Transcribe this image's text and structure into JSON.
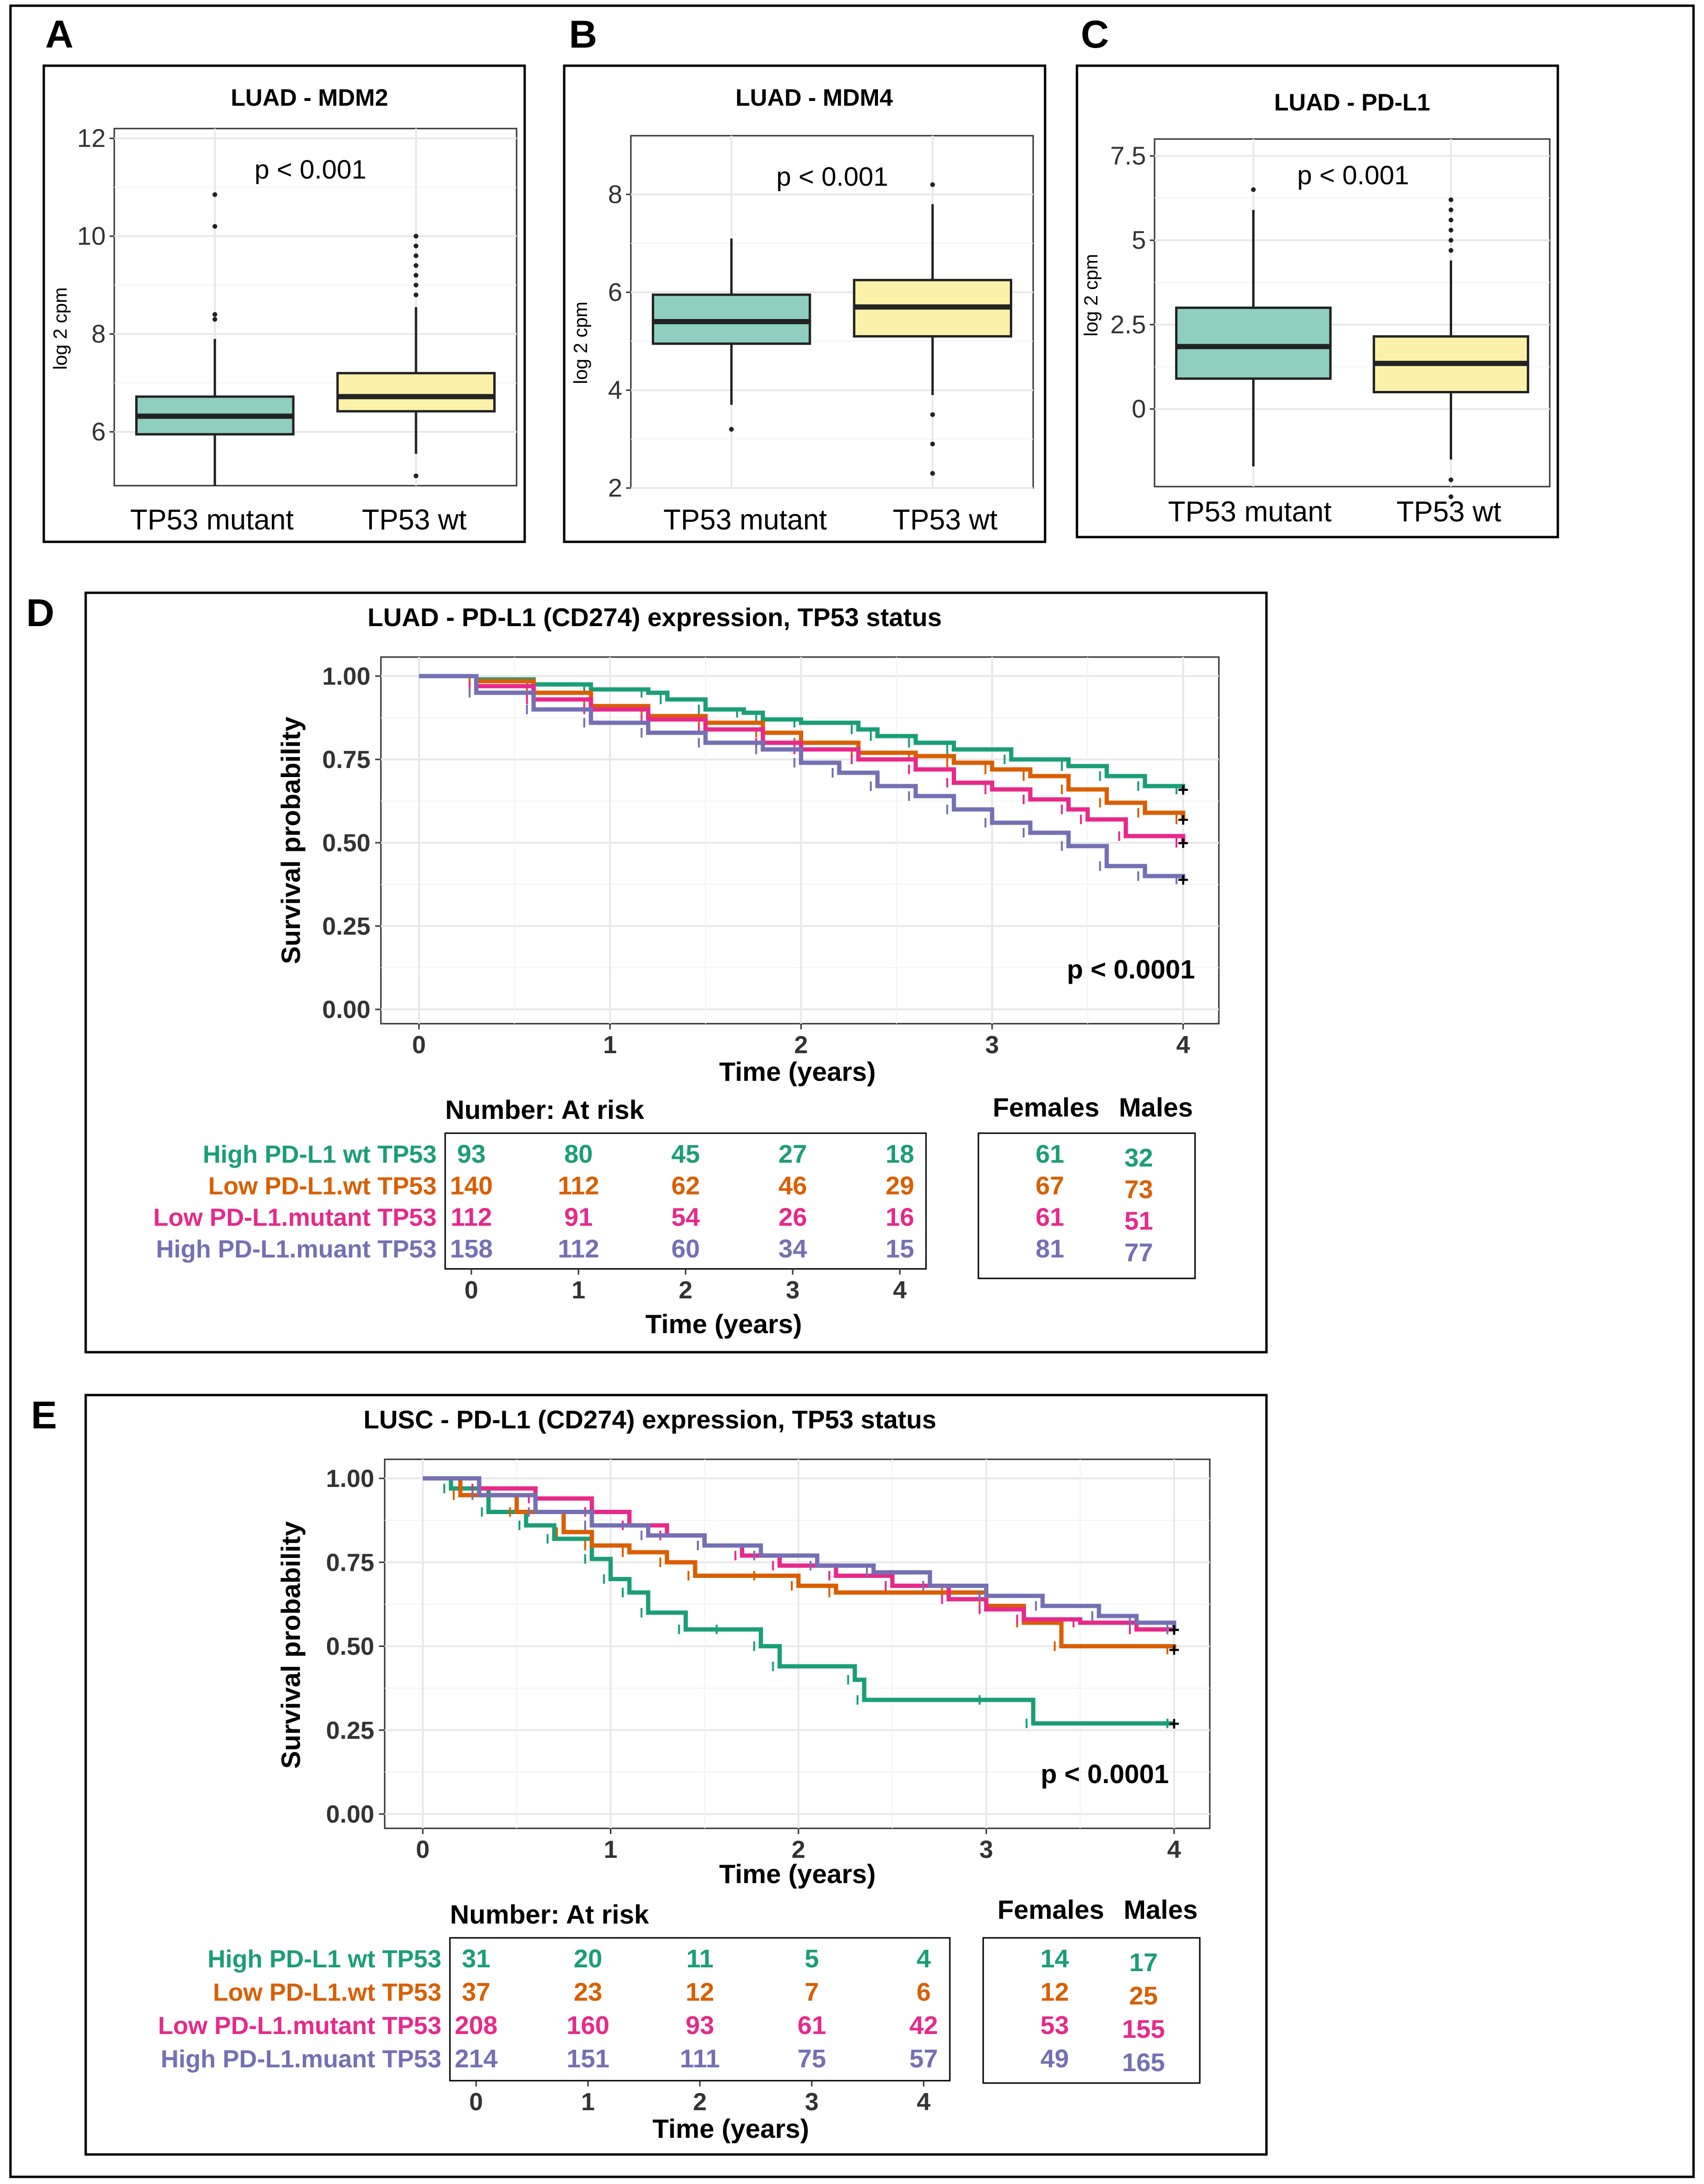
{
  "panels": {
    "A": "A",
    "B": "B",
    "C": "C",
    "D": "D",
    "E": "E"
  },
  "colors": {
    "mutant_fill": "#8ecfc0",
    "wt_fill": "#fbf1a9",
    "high_wt": "#1b9e77",
    "low_wt": "#d95f02",
    "low_mut": "#e7298a",
    "high_mut": "#7570b3"
  },
  "box_plots": [
    {
      "id": "A",
      "title": "LUAD - MDM2",
      "ylabel": "log 2 cpm",
      "p_value": "p < 0.001",
      "ylim": [
        4.9,
        12.2
      ],
      "yticks": [
        6,
        8,
        10,
        12
      ],
      "ytick_labels": [
        "6",
        "8",
        "10",
        "12"
      ],
      "groups": [
        {
          "label": "TP53 mutant",
          "q1": 5.95,
          "median": 6.32,
          "q3": 6.72,
          "wlo": 4.9,
          "whi": 7.9,
          "outliers": [
            8.3,
            8.4,
            10.2,
            10.85
          ]
        },
        {
          "label": "TP53 wt",
          "q1": 6.42,
          "median": 6.72,
          "q3": 7.2,
          "wlo": 5.55,
          "whi": 8.55,
          "outliers": [
            5.1,
            8.8,
            9.0,
            9.2,
            9.4,
            9.6,
            9.8,
            10.0
          ]
        }
      ]
    },
    {
      "id": "B",
      "title": "LUAD - MDM4",
      "ylabel": "log 2 cpm",
      "p_value": "p < 0.001",
      "ylim": [
        2.0,
        9.2
      ],
      "yticks": [
        2,
        4,
        6,
        8
      ],
      "ytick_labels": [
        "2",
        "4",
        "6",
        "8"
      ],
      "groups": [
        {
          "label": "TP53 mutant",
          "q1": 4.95,
          "median": 5.4,
          "q3": 5.95,
          "wlo": 3.7,
          "whi": 7.1,
          "outliers": [
            3.2
          ]
        },
        {
          "label": "TP53 wt",
          "q1": 5.1,
          "median": 5.7,
          "q3": 6.25,
          "wlo": 3.9,
          "whi": 7.8,
          "outliers": [
            2.3,
            2.9,
            3.5,
            8.2
          ]
        }
      ]
    },
    {
      "id": "C",
      "title": "LUAD - PD-L1",
      "ylabel": "log 2 cpm",
      "p_value": "p < 0.001",
      "ylim": [
        -2.3,
        8.0
      ],
      "yticks": [
        0,
        2.5,
        5,
        7.5
      ],
      "ytick_labels": [
        "0",
        "2.5",
        "5",
        "7.5"
      ],
      "groups": [
        {
          "label": "TP53 mutant",
          "q1": 0.9,
          "median": 1.85,
          "q3": 3.0,
          "wlo": -1.7,
          "whi": 5.9,
          "outliers": [
            6.5
          ]
        },
        {
          "label": "TP53 wt",
          "q1": 0.5,
          "median": 1.35,
          "q3": 2.15,
          "wlo": -1.5,
          "whi": 4.4,
          "outliers": [
            -2.1,
            -2.6,
            4.7,
            5.0,
            5.3,
            5.6,
            5.9,
            6.2
          ]
        }
      ]
    }
  ],
  "chart_data": [
    {
      "type": "line",
      "id": "D",
      "title": "LUAD - PD-L1 (CD274) expression, TP53 status",
      "xlabel": "Time (years)",
      "ylabel": "Survival probability",
      "p_value": "p < 0.0001",
      "xlim": [
        0,
        4
      ],
      "ylim": [
        0,
        1
      ],
      "xticks": [
        "0",
        "1",
        "2",
        "3",
        "4"
      ],
      "yticks": [
        "0.00",
        "0.25",
        "0.50",
        "0.75",
        "1.00"
      ],
      "series": [
        {
          "name": "High PD-L1 wt TP53",
          "color_key": "high_wt",
          "points": [
            [
              0,
              1.0
            ],
            [
              0.3,
              0.99
            ],
            [
              0.6,
              0.975
            ],
            [
              0.9,
              0.96
            ],
            [
              1.2,
              0.95
            ],
            [
              1.3,
              0.93
            ],
            [
              1.5,
              0.9
            ],
            [
              1.7,
              0.89
            ],
            [
              1.8,
              0.87
            ],
            [
              2.0,
              0.86
            ],
            [
              2.3,
              0.84
            ],
            [
              2.4,
              0.82
            ],
            [
              2.6,
              0.8
            ],
            [
              2.8,
              0.78
            ],
            [
              3.1,
              0.75
            ],
            [
              3.4,
              0.73
            ],
            [
              3.6,
              0.7
            ],
            [
              3.8,
              0.67
            ],
            [
              4.0,
              0.66
            ]
          ]
        },
        {
          "name": "Low PD-L1.wt TP53",
          "color_key": "low_wt",
          "points": [
            [
              0,
              1.0
            ],
            [
              0.3,
              0.985
            ],
            [
              0.6,
              0.95
            ],
            [
              0.9,
              0.91
            ],
            [
              1.2,
              0.88
            ],
            [
              1.5,
              0.86
            ],
            [
              1.8,
              0.83
            ],
            [
              2.0,
              0.8
            ],
            [
              2.3,
              0.77
            ],
            [
              2.6,
              0.76
            ],
            [
              2.8,
              0.74
            ],
            [
              3.0,
              0.72
            ],
            [
              3.2,
              0.7
            ],
            [
              3.4,
              0.66
            ],
            [
              3.6,
              0.62
            ],
            [
              3.8,
              0.59
            ],
            [
              4.0,
              0.57
            ]
          ]
        },
        {
          "name": "Low PD-L1.mutant TP53",
          "color_key": "low_mut",
          "points": [
            [
              0,
              1.0
            ],
            [
              0.3,
              0.97
            ],
            [
              0.6,
              0.93
            ],
            [
              0.9,
              0.9
            ],
            [
              1.2,
              0.87
            ],
            [
              1.5,
              0.84
            ],
            [
              1.8,
              0.8
            ],
            [
              2.0,
              0.78
            ],
            [
              2.3,
              0.75
            ],
            [
              2.6,
              0.72
            ],
            [
              2.8,
              0.68
            ],
            [
              3.0,
              0.66
            ],
            [
              3.2,
              0.63
            ],
            [
              3.4,
              0.6
            ],
            [
              3.5,
              0.57
            ],
            [
              3.7,
              0.52
            ],
            [
              4.0,
              0.5
            ]
          ]
        },
        {
          "name": "High PD-L1.muant TP53",
          "color_key": "high_mut",
          "points": [
            [
              0,
              1.0
            ],
            [
              0.3,
              0.95
            ],
            [
              0.6,
              0.9
            ],
            [
              0.9,
              0.86
            ],
            [
              1.2,
              0.83
            ],
            [
              1.5,
              0.8
            ],
            [
              1.8,
              0.78
            ],
            [
              2.0,
              0.74
            ],
            [
              2.2,
              0.71
            ],
            [
              2.4,
              0.67
            ],
            [
              2.6,
              0.64
            ],
            [
              2.8,
              0.6
            ],
            [
              3.0,
              0.56
            ],
            [
              3.2,
              0.53
            ],
            [
              3.4,
              0.49
            ],
            [
              3.6,
              0.43
            ],
            [
              3.8,
              0.4
            ],
            [
              4.0,
              0.39
            ]
          ]
        }
      ],
      "risk_table": {
        "header": "Number: At risk",
        "xlabel": "Time (years)",
        "ticks": [
          "0",
          "1",
          "2",
          "3",
          "4"
        ],
        "rows": [
          {
            "label": "High PD-L1 wt TP53",
            "color_key": "high_wt",
            "values": [
              "93",
              "80",
              "45",
              "27",
              "18"
            ],
            "females": "61",
            "males": "32"
          },
          {
            "label": "Low PD-L1.wt TP53",
            "color_key": "low_wt",
            "values": [
              "140",
              "112",
              "62",
              "46",
              "29"
            ],
            "females": "67",
            "males": "73"
          },
          {
            "label": "Low PD-L1.mutant TP53",
            "color_key": "low_mut",
            "values": [
              "112",
              "91",
              "54",
              "26",
              "16"
            ],
            "females": "61",
            "males": "51"
          },
          {
            "label": "High PD-L1.muant TP53",
            "color_key": "high_mut",
            "values": [
              "158",
              "112",
              "60",
              "34",
              "15"
            ],
            "females": "81",
            "males": "77"
          }
        ],
        "females_label": "Females",
        "males_label": "Males"
      }
    },
    {
      "type": "line",
      "id": "E",
      "title": "LUSC - PD-L1 (CD274) expression, TP53 status",
      "xlabel": "Time (years)",
      "ylabel": "Survival probability",
      "p_value": "p < 0.0001",
      "xlim": [
        0,
        4
      ],
      "ylim": [
        0,
        1
      ],
      "xticks": [
        "0",
        "1",
        "2",
        "3",
        "4"
      ],
      "yticks": [
        "0.00",
        "0.25",
        "0.50",
        "0.75",
        "1.00"
      ],
      "series": [
        {
          "name": "High PD-L1 wt TP53",
          "color_key": "high_wt",
          "points": [
            [
              0,
              1.0
            ],
            [
              0.15,
              0.97
            ],
            [
              0.35,
              0.9
            ],
            [
              0.55,
              0.86
            ],
            [
              0.7,
              0.82
            ],
            [
              0.9,
              0.76
            ],
            [
              1.0,
              0.7
            ],
            [
              1.1,
              0.66
            ],
            [
              1.2,
              0.6
            ],
            [
              1.4,
              0.55
            ],
            [
              1.6,
              0.55
            ],
            [
              1.8,
              0.5
            ],
            [
              1.9,
              0.44
            ],
            [
              2.3,
              0.4
            ],
            [
              2.35,
              0.34
            ],
            [
              3.0,
              0.34
            ],
            [
              3.25,
              0.27
            ],
            [
              4.0,
              0.27
            ]
          ]
        },
        {
          "name": "Low PD-L1.wt TP53",
          "color_key": "low_wt",
          "points": [
            [
              0,
              1.0
            ],
            [
              0.2,
              0.95
            ],
            [
              0.5,
              0.9
            ],
            [
              0.75,
              0.84
            ],
            [
              0.9,
              0.8
            ],
            [
              1.1,
              0.78
            ],
            [
              1.3,
              0.75
            ],
            [
              1.45,
              0.71
            ],
            [
              1.8,
              0.71
            ],
            [
              2.0,
              0.68
            ],
            [
              2.2,
              0.66
            ],
            [
              2.8,
              0.66
            ],
            [
              3.0,
              0.62
            ],
            [
              3.2,
              0.57
            ],
            [
              3.4,
              0.5
            ],
            [
              4.0,
              0.49
            ]
          ]
        },
        {
          "name": "Low PD-L1.mutant TP53",
          "color_key": "low_mut",
          "points": [
            [
              0,
              1.0
            ],
            [
              0.3,
              0.97
            ],
            [
              0.6,
              0.94
            ],
            [
              0.9,
              0.9
            ],
            [
              1.1,
              0.86
            ],
            [
              1.3,
              0.83
            ],
            [
              1.5,
              0.8
            ],
            [
              1.7,
              0.77
            ],
            [
              1.9,
              0.74
            ],
            [
              2.2,
              0.71
            ],
            [
              2.5,
              0.68
            ],
            [
              2.8,
              0.64
            ],
            [
              3.0,
              0.61
            ],
            [
              3.2,
              0.58
            ],
            [
              3.5,
              0.57
            ],
            [
              3.8,
              0.55
            ],
            [
              4.0,
              0.55
            ]
          ]
        },
        {
          "name": "High PD-L1.muant TP53",
          "color_key": "high_mut",
          "points": [
            [
              0,
              1.0
            ],
            [
              0.3,
              0.95
            ],
            [
              0.6,
              0.9
            ],
            [
              0.9,
              0.86
            ],
            [
              1.2,
              0.83
            ],
            [
              1.5,
              0.8
            ],
            [
              1.8,
              0.77
            ],
            [
              2.1,
              0.74
            ],
            [
              2.4,
              0.72
            ],
            [
              2.7,
              0.68
            ],
            [
              3.0,
              0.65
            ],
            [
              3.3,
              0.62
            ],
            [
              3.6,
              0.59
            ],
            [
              3.8,
              0.57
            ],
            [
              4.0,
              0.55
            ]
          ]
        }
      ],
      "risk_table": {
        "header": "Number: At risk",
        "xlabel": "Time (years)",
        "ticks": [
          "0",
          "1",
          "2",
          "3",
          "4"
        ],
        "rows": [
          {
            "label": "High PD-L1 wt TP53",
            "color_key": "high_wt",
            "values": [
              "31",
              "20",
              "11",
              "5",
              "4"
            ],
            "females": "14",
            "males": "17"
          },
          {
            "label": "Low PD-L1.wt TP53",
            "color_key": "low_wt",
            "values": [
              "37",
              "23",
              "12",
              "7",
              "6"
            ],
            "females": "12",
            "males": "25"
          },
          {
            "label": "Low PD-L1.mutant TP53",
            "color_key": "low_mut",
            "values": [
              "208",
              "160",
              "93",
              "61",
              "42"
            ],
            "females": "53",
            "males": "155"
          },
          {
            "label": "High PD-L1.muant TP53",
            "color_key": "high_mut",
            "values": [
              "214",
              "151",
              "111",
              "75",
              "57"
            ],
            "females": "49",
            "males": "165"
          }
        ],
        "females_label": "Females",
        "males_label": "Males"
      }
    }
  ]
}
